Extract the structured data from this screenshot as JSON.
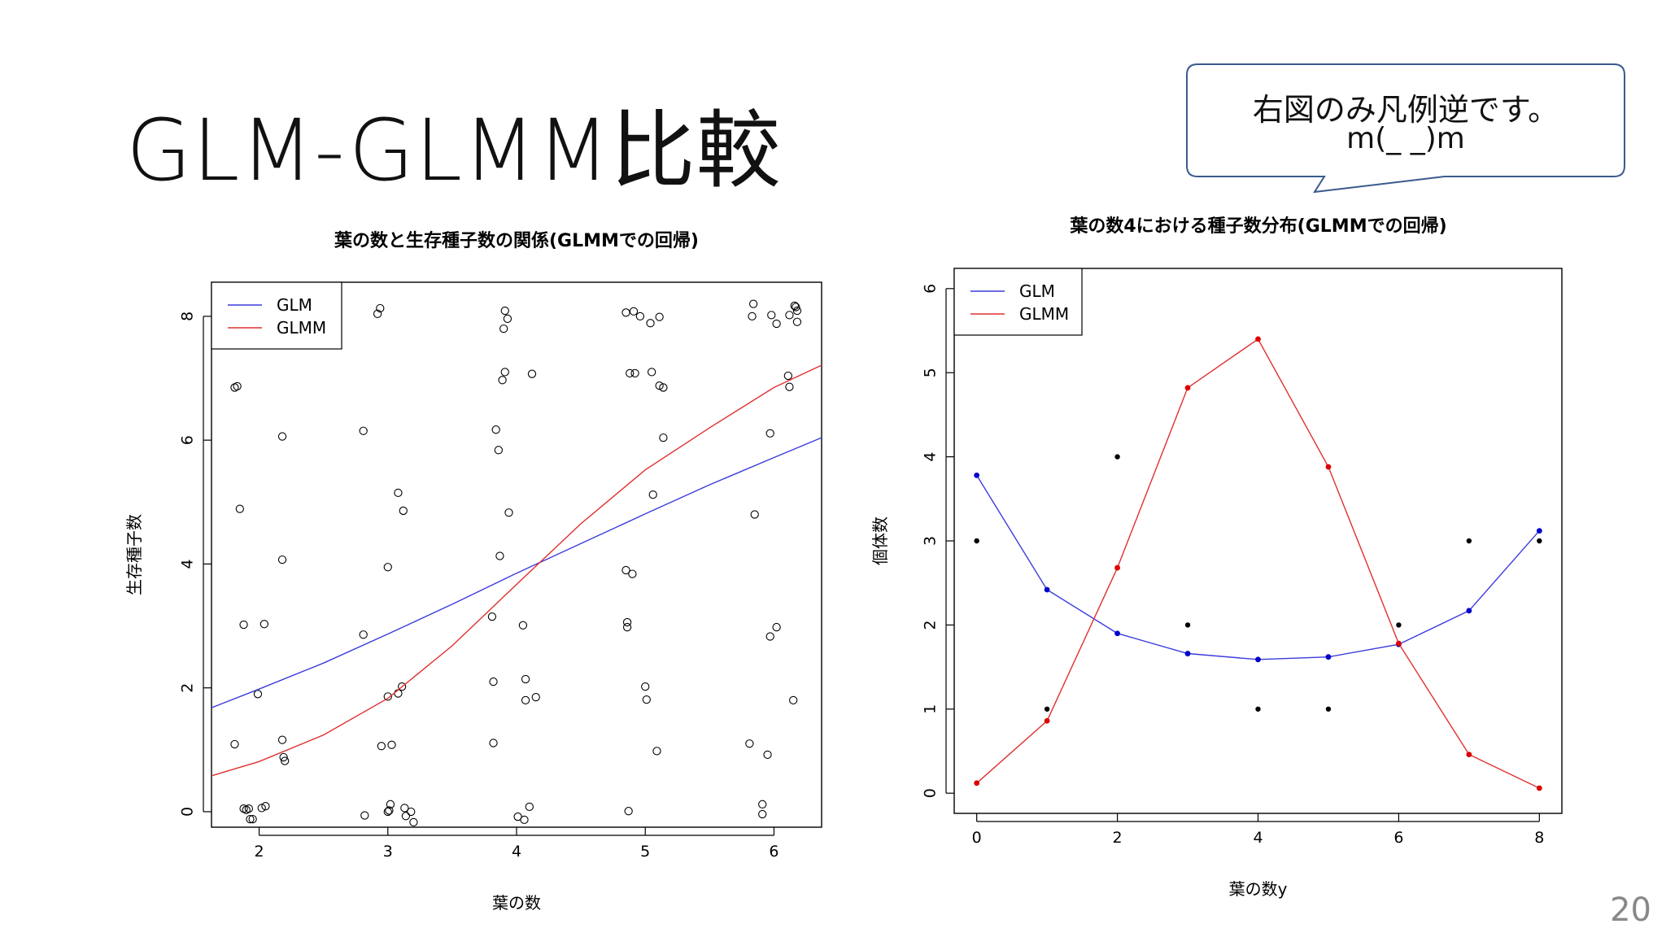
{
  "slide": {
    "title": "GLM-GLMM比較",
    "callout_line1": "右図のみ凡例逆です。",
    "callout_line2": "m(_ _)m",
    "page_number": "20"
  },
  "colors": {
    "glm": "#3b3bdc",
    "glmm": "#e03030",
    "points": "#000000",
    "glm_points": "#0000cc",
    "glmm_points": "#dd0000"
  },
  "chart_data": [
    {
      "type": "scatter",
      "title": "葉の数と生存種子数の関係(GLMMでの回帰)",
      "xlabel": "葉の数",
      "ylabel": "生存種子数",
      "xlim": [
        1.63,
        6.37
      ],
      "ylim": [
        -0.25,
        8.55
      ],
      "xticks": [
        2,
        3,
        4,
        5,
        6
      ],
      "yticks": [
        0,
        2,
        4,
        6,
        8
      ],
      "legend": {
        "position": "top-left",
        "entries": [
          "GLM",
          "GLMM"
        ]
      },
      "points": [
        [
          1.81,
          6.85
        ],
        [
          1.83,
          6.87
        ],
        [
          1.85,
          4.89
        ],
        [
          1.88,
          3.02
        ],
        [
          1.81,
          1.09
        ],
        [
          1.88,
          0.05
        ],
        [
          1.9,
          0.03
        ],
        [
          1.92,
          0.05
        ],
        [
          1.93,
          -0.12
        ],
        [
          1.95,
          -0.12
        ],
        [
          1.99,
          1.9
        ],
        [
          2.02,
          0.06
        ],
        [
          2.04,
          3.03
        ],
        [
          2.05,
          0.09
        ],
        [
          2.18,
          6.06
        ],
        [
          2.18,
          4.07
        ],
        [
          2.18,
          1.16
        ],
        [
          2.19,
          0.88
        ],
        [
          2.2,
          0.82
        ],
        [
          2.81,
          6.15
        ],
        [
          2.81,
          2.86
        ],
        [
          2.82,
          -0.06
        ],
        [
          2.92,
          8.04
        ],
        [
          2.94,
          8.13
        ],
        [
          2.95,
          1.06
        ],
        [
          3.0,
          3.95
        ],
        [
          3.0,
          1.86
        ],
        [
          3.0,
          0.0
        ],
        [
          3.01,
          0.02
        ],
        [
          3.02,
          0.12
        ],
        [
          3.03,
          1.08
        ],
        [
          3.08,
          5.15
        ],
        [
          3.08,
          1.91
        ],
        [
          3.11,
          2.02
        ],
        [
          3.12,
          4.86
        ],
        [
          3.13,
          0.06
        ],
        [
          3.14,
          -0.07
        ],
        [
          3.18,
          0.0
        ],
        [
          3.2,
          -0.17
        ],
        [
          3.81,
          3.15
        ],
        [
          3.82,
          2.1
        ],
        [
          3.82,
          1.11
        ],
        [
          3.84,
          6.17
        ],
        [
          3.86,
          5.84
        ],
        [
          3.87,
          4.13
        ],
        [
          3.89,
          6.97
        ],
        [
          3.9,
          7.8
        ],
        [
          3.91,
          7.1
        ],
        [
          3.91,
          8.09
        ],
        [
          3.93,
          7.96
        ],
        [
          3.94,
          4.83
        ],
        [
          4.01,
          -0.08
        ],
        [
          4.05,
          3.01
        ],
        [
          4.06,
          -0.13
        ],
        [
          4.07,
          2.14
        ],
        [
          4.07,
          1.8
        ],
        [
          4.1,
          0.08
        ],
        [
          4.12,
          7.07
        ],
        [
          4.15,
          1.85
        ],
        [
          4.85,
          8.06
        ],
        [
          4.85,
          3.9
        ],
        [
          4.86,
          3.06
        ],
        [
          4.86,
          2.98
        ],
        [
          4.87,
          0.01
        ],
        [
          4.88,
          7.08
        ],
        [
          4.9,
          3.84
        ],
        [
          4.91,
          8.08
        ],
        [
          4.92,
          7.08
        ],
        [
          4.96,
          8.0
        ],
        [
          5.0,
          2.02
        ],
        [
          5.01,
          1.81
        ],
        [
          5.04,
          7.89
        ],
        [
          5.05,
          7.1
        ],
        [
          5.06,
          5.12
        ],
        [
          5.09,
          0.98
        ],
        [
          5.11,
          7.99
        ],
        [
          5.11,
          6.88
        ],
        [
          5.14,
          6.85
        ],
        [
          5.14,
          6.04
        ],
        [
          5.81,
          1.1
        ],
        [
          5.83,
          8.0
        ],
        [
          5.84,
          8.2
        ],
        [
          5.85,
          4.8
        ],
        [
          5.91,
          0.12
        ],
        [
          5.91,
          -0.04
        ],
        [
          5.95,
          0.92
        ],
        [
          5.97,
          6.11
        ],
        [
          5.97,
          2.83
        ],
        [
          5.98,
          8.02
        ],
        [
          6.02,
          7.88
        ],
        [
          6.02,
          2.98
        ],
        [
          6.11,
          7.04
        ],
        [
          6.12,
          8.02
        ],
        [
          6.12,
          6.86
        ],
        [
          6.15,
          1.8
        ],
        [
          6.16,
          8.17
        ],
        [
          6.17,
          8.15
        ],
        [
          6.18,
          7.91
        ],
        [
          6.18,
          8.09
        ]
      ],
      "series": [
        {
          "name": "GLM",
          "x": [
            1.63,
            2.0,
            2.5,
            3.0,
            3.5,
            4.0,
            4.5,
            5.0,
            5.5,
            6.0,
            6.37
          ],
          "y": [
            1.68,
            1.98,
            2.4,
            2.87,
            3.35,
            3.85,
            4.33,
            4.81,
            5.28,
            5.72,
            6.04
          ]
        },
        {
          "name": "GLMM",
          "x": [
            1.63,
            2.0,
            2.5,
            3.0,
            3.5,
            4.0,
            4.5,
            5.0,
            5.5,
            6.0,
            6.37
          ],
          "y": [
            0.58,
            0.81,
            1.24,
            1.83,
            2.68,
            3.67,
            4.65,
            5.52,
            6.2,
            6.85,
            7.21
          ]
        }
      ]
    },
    {
      "type": "line",
      "title": "葉の数4における種子数分布(GLMMでの回帰)",
      "xlabel": "葉の数y",
      "ylabel": "個体数",
      "xlim": [
        -0.32,
        8.32
      ],
      "ylim": [
        -0.24,
        6.24
      ],
      "xticks": [
        0,
        2,
        4,
        6,
        8
      ],
      "yticks": [
        0,
        1,
        2,
        3,
        4,
        5,
        6
      ],
      "legend": {
        "position": "top-left",
        "entries": [
          "GLM",
          "GLMM"
        ]
      },
      "observed": {
        "x": [
          0,
          1,
          2,
          3,
          4,
          5,
          6,
          7,
          8
        ],
        "y": [
          3,
          1,
          4,
          2,
          1,
          1,
          2,
          3,
          3
        ]
      },
      "series": [
        {
          "name": "GLM",
          "x": [
            0,
            1,
            2,
            3,
            4,
            5,
            6,
            7,
            8
          ],
          "y": [
            3.78,
            2.42,
            1.9,
            1.66,
            1.59,
            1.62,
            1.77,
            2.17,
            3.12
          ]
        },
        {
          "name": "GLMM",
          "x": [
            0,
            1,
            2,
            3,
            4,
            5,
            6,
            7,
            8
          ],
          "y": [
            0.12,
            0.86,
            2.68,
            4.82,
            5.4,
            3.88,
            1.78,
            0.46,
            0.06
          ]
        }
      ]
    }
  ]
}
